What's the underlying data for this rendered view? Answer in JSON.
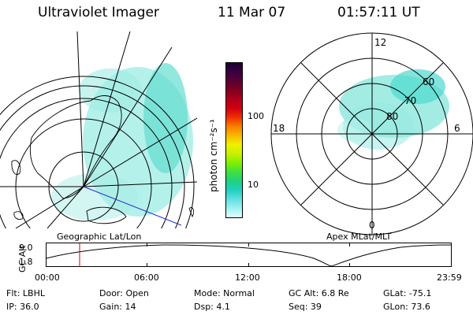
{
  "header": {
    "instrument": "Ultraviolet Imager",
    "date": "11 Mar 07",
    "time": "01:57:11 UT"
  },
  "left_panel": {
    "label": "Geographic Lat/Lon"
  },
  "right_panel": {
    "label": "Apex MLat/MLT",
    "mlt_labels": [
      "12",
      "18",
      "6",
      "0"
    ],
    "lat_labels": [
      "60",
      "70",
      "80"
    ]
  },
  "colorbar": {
    "unit_label": "photon cm⁻²s⁻¹",
    "tick_labels": [
      "100",
      "10"
    ],
    "colors": [
      "#1a0030",
      "#3a0040",
      "#5a0030",
      "#800020",
      "#b0001a",
      "#d00010",
      "#f03000",
      "#f88000",
      "#f8b800",
      "#f0f000",
      "#c8f000",
      "#80f000",
      "#40e040",
      "#20d080",
      "#20d0c0",
      "#60e0e0",
      "#a0f0f0",
      "#e0ffff"
    ]
  },
  "altitude_plot": {
    "ylabel": "GC Alt",
    "yticks": [
      "9.0",
      "1.8"
    ],
    "xticks": [
      "00:00",
      "06:00",
      "12:00",
      "18:00",
      "23:59"
    ],
    "marker_time": "01:57"
  },
  "info": {
    "flt": "Flt: LBHL",
    "ip": "IP: 36.0",
    "door": "Door: Open",
    "gain": "Gain: 14",
    "mode": "Mode: Normal",
    "dsp": "Dsp:     4.1",
    "gc_alt": "GC Alt: 6.8 Re",
    "seq": "Seq: 39",
    "glat": "GLat:  -75.1",
    "glon": "GLon:  73.6"
  }
}
